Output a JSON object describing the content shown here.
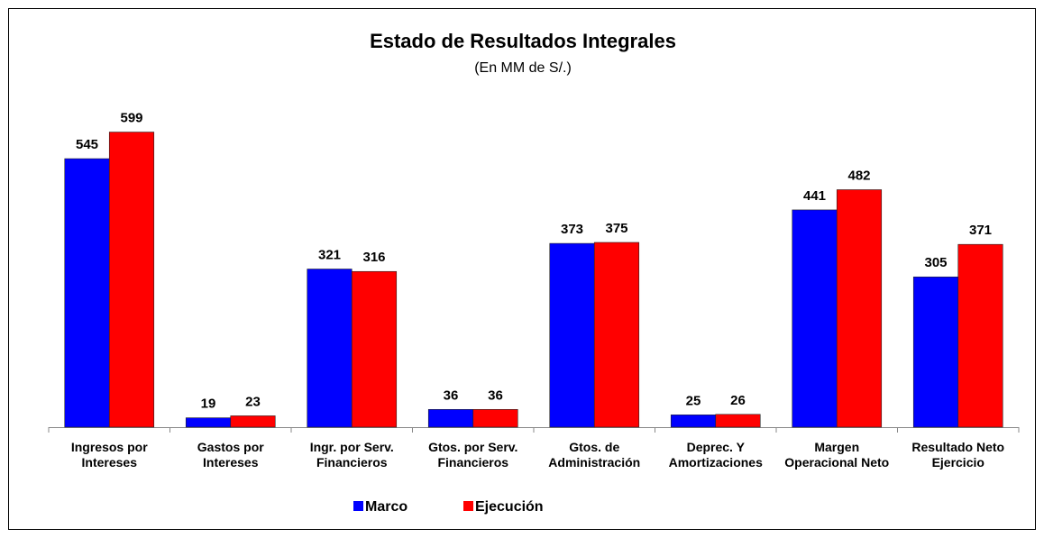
{
  "chart_data": {
    "type": "bar",
    "title": "Estado de Resultados Integrales",
    "subtitle": "(En MM de S/.)",
    "categories": [
      "Ingresos por Intereses",
      "Gastos por Intereses",
      "Ingr. por Serv. Financieros",
      "Gtos. por Serv. Financieros",
      "Gtos. de Administración",
      "Deprec. Y Amortizaciones",
      "Margen Operacional Neto",
      "Resultado Neto Ejercicio"
    ],
    "series": [
      {
        "name": "Marco",
        "color": "#0000ff",
        "values": [
          545,
          19,
          321,
          36,
          373,
          25,
          441,
          305
        ]
      },
      {
        "name": "Ejecución",
        "color": "#ff0000",
        "values": [
          599,
          23,
          316,
          36,
          375,
          26,
          482,
          371
        ]
      }
    ],
    "ylim": [
      0,
      600
    ],
    "grid": false
  }
}
